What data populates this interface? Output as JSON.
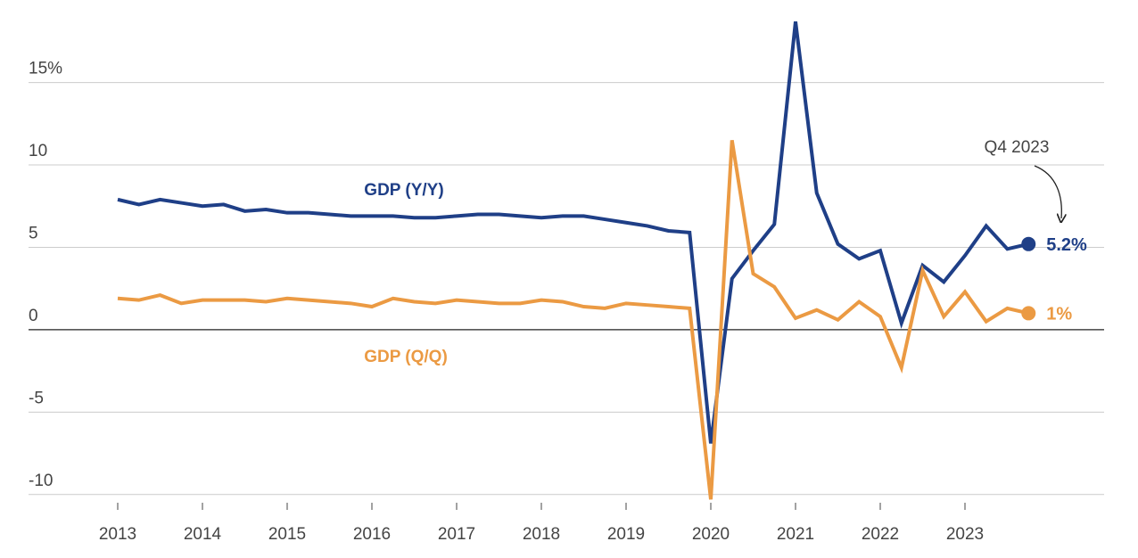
{
  "chart_data": {
    "type": "line",
    "categories": [
      "2013",
      null,
      null,
      null,
      "2014",
      null,
      null,
      null,
      "2015",
      null,
      null,
      null,
      "2016",
      null,
      null,
      null,
      "2017",
      null,
      null,
      null,
      "2018",
      null,
      null,
      null,
      "2019",
      null,
      null,
      null,
      "2020",
      null,
      null,
      null,
      "2021",
      null,
      null,
      null,
      "2022",
      null,
      null,
      null,
      "2023",
      null,
      null,
      null
    ],
    "series": [
      {
        "name": "GDP (Y/Y)",
        "color": "#1f3f87",
        "values": [
          7.9,
          7.6,
          7.9,
          7.7,
          7.5,
          7.6,
          7.2,
          7.3,
          7.1,
          7.1,
          7.0,
          6.9,
          6.9,
          6.9,
          6.8,
          6.8,
          6.9,
          7.0,
          7.0,
          6.9,
          6.8,
          6.9,
          6.9,
          6.7,
          6.5,
          6.3,
          6.0,
          5.9,
          -6.9,
          3.1,
          4.8,
          6.4,
          18.7,
          8.3,
          5.2,
          4.3,
          4.8,
          0.4,
          3.9,
          2.9,
          4.5,
          6.3,
          4.9,
          5.2
        ],
        "value_labels": [
          null,
          null,
          null,
          null,
          null,
          null,
          null,
          null,
          null,
          null,
          null,
          null,
          null,
          null,
          null,
          null,
          null,
          null,
          null,
          null,
          null,
          null,
          null,
          null,
          null,
          null,
          null,
          null,
          null,
          null,
          null,
          null,
          null,
          null,
          null,
          null,
          null,
          null,
          null,
          null,
          null,
          null,
          null,
          "5.2%"
        ]
      },
      {
        "name": "GDP (Q/Q)",
        "color": "#eb9a43",
        "values": [
          1.9,
          1.8,
          2.1,
          1.6,
          1.8,
          1.8,
          1.8,
          1.7,
          1.9,
          1.8,
          1.7,
          1.6,
          1.4,
          1.9,
          1.7,
          1.6,
          1.8,
          1.7,
          1.6,
          1.6,
          1.8,
          1.7,
          1.4,
          1.3,
          1.6,
          1.5,
          1.4,
          1.3,
          -10.3,
          11.5,
          3.4,
          2.6,
          0.7,
          1.2,
          0.6,
          1.7,
          0.8,
          -2.3,
          3.6,
          0.8,
          2.3,
          0.5,
          1.3,
          1.0
        ],
        "value_labels": [
          null,
          null,
          null,
          null,
          null,
          null,
          null,
          null,
          null,
          null,
          null,
          null,
          null,
          null,
          null,
          null,
          null,
          null,
          null,
          null,
          null,
          null,
          null,
          null,
          null,
          null,
          null,
          null,
          null,
          null,
          null,
          null,
          null,
          null,
          null,
          null,
          null,
          null,
          null,
          null,
          null,
          null,
          null,
          "1%"
        ]
      }
    ],
    "ylim": [
      -10.5,
      19.2
    ],
    "yticks": [
      -10,
      -5,
      0,
      5,
      10,
      {
        "value": 15,
        "label": "15%"
      }
    ],
    "annotations": [
      "Q4 2023"
    ],
    "grid": true
  }
}
